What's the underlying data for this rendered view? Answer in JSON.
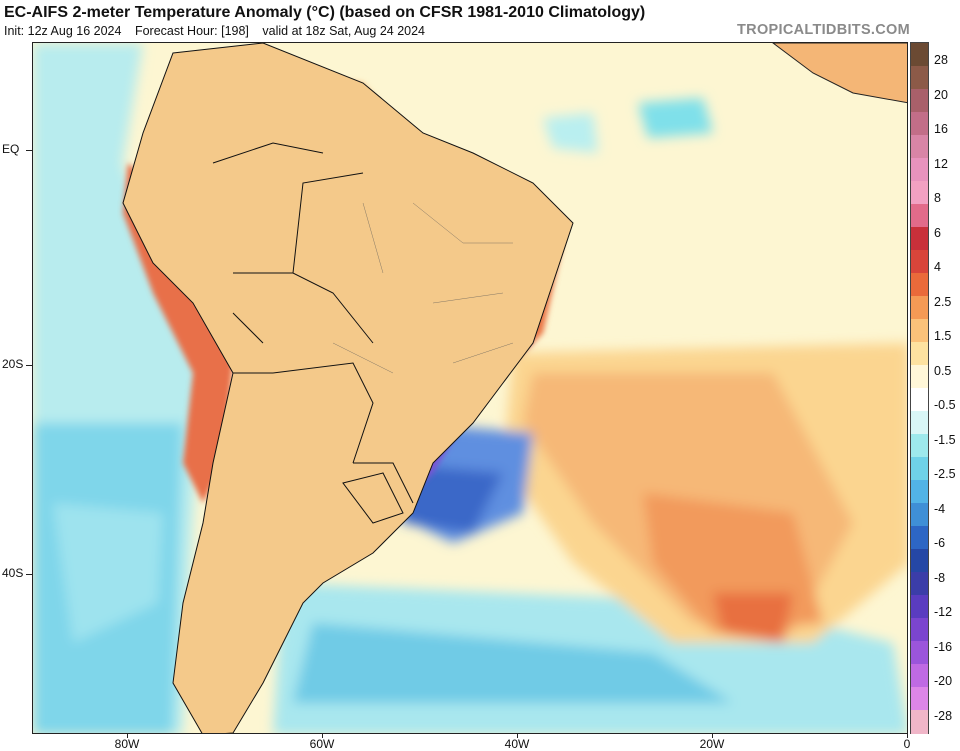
{
  "header": {
    "title": "EC-AIFS 2-meter Temperature Anomaly (°C) (based on CFSR 1981-2010 Climatology)",
    "init": "Init: 12z Aug 16 2024",
    "forecast_hour": "Forecast Hour: [198]",
    "valid": "valid at 18z Sat, Aug 24 2024",
    "brand": "TROPICALTIDBITS.COM"
  },
  "axes": {
    "lat_labels": [
      "EQ",
      "20S",
      "40S"
    ],
    "lon_labels": [
      "80W",
      "60W",
      "40W",
      "20W",
      "0"
    ]
  },
  "colorbar": {
    "labels": [
      "28",
      "20",
      "16",
      "12",
      "8",
      "6",
      "4",
      "2.5",
      "1.5",
      "0.5",
      "-0.5",
      "-1.5",
      "-2.5",
      "-4",
      "-6",
      "-8",
      "-12",
      "-16",
      "-20",
      "-28"
    ],
    "colors": [
      "#6b4a33",
      "#8c5a48",
      "#a9606a",
      "#c26e88",
      "#d885a6",
      "#e893bd",
      "#f2a1c2",
      "#e26b8a",
      "#c9303a",
      "#d8453a",
      "#ea6a3a",
      "#f59a55",
      "#fbc27a",
      "#fde2a0",
      "#fff7d8",
      "#ffffff",
      "#d9f6f6",
      "#9ee9ec",
      "#6fd2e8",
      "#52b3e6",
      "#3f8fd6",
      "#2d66c4",
      "#2547a5",
      "#3b3da8",
      "#5a3cc0",
      "#7b45cf",
      "#9b55db",
      "#bf6ae3",
      "#dd86e7",
      "#f0b6c8"
    ]
  },
  "colors": {
    "ocean_base": "#fdfbe8",
    "cold_purple": "#6a46c9",
    "cold_blue": "#3d70d4",
    "warm_red": "#d04a35",
    "warm_orange": "#f3a262",
    "cyan": "#8fe4ea"
  }
}
